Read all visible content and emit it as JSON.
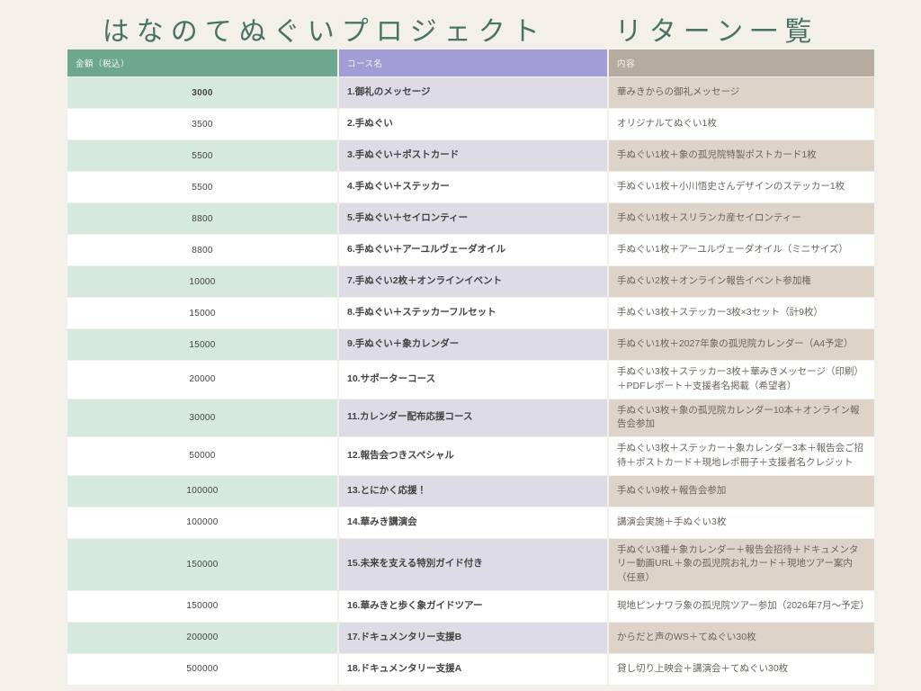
{
  "title": "はなのてぬぐいプロジェクト　　リターン一覧",
  "table": {
    "headers": {
      "amount": "金額（税込）",
      "course": "コース名",
      "description": "内容"
    },
    "rows": [
      {
        "amount": "3000",
        "course": "1.御礼のメッセージ",
        "description": "華みきからの御礼メッセージ"
      },
      {
        "amount": "3500",
        "course": "2.手ぬぐい",
        "description": "オリジナルてぬぐい1枚"
      },
      {
        "amount": "5500",
        "course": "3.手ぬぐい＋ポストカード",
        "description": "手ぬぐい1枚＋象の孤児院特製ポストカード1枚"
      },
      {
        "amount": "5500",
        "course": "4.手ぬぐい＋ステッカー",
        "description": "手ぬぐい1枚＋小川悟史さんデザインのステッカー1枚"
      },
      {
        "amount": "8800",
        "course": "5.手ぬぐい＋セイロンティー",
        "description": "手ぬぐい1枚＋スリランカ産セイロンティー"
      },
      {
        "amount": "8800",
        "course": "6.手ぬぐい＋アーユルヴェーダオイル",
        "description": "手ぬぐい1枚＋アーユルヴェーダオイル（ミニサイズ）"
      },
      {
        "amount": "10000",
        "course": "7.手ぬぐい2枚＋オンラインイベント",
        "description": "手ぬぐい2枚＋オンライン報告イベント参加権"
      },
      {
        "amount": "15000",
        "course": "8.手ぬぐい＋ステッカーフルセット",
        "description": "手ぬぐい3枚＋ステッカー3枚×3セット（計9枚）"
      },
      {
        "amount": "15000",
        "course": "9.手ぬぐい＋象カレンダー",
        "description": "手ぬぐい1枚＋2027年象の孤児院カレンダー（A4予定）"
      },
      {
        "amount": "20000",
        "course": "10.サポーターコース",
        "description": "手ぬぐい3枚＋ステッカー3枚＋華みきメッセージ（印刷）＋PDFレポート＋支援者名掲載（希望者）"
      },
      {
        "amount": "30000",
        "course": "11.カレンダー配布応援コース",
        "description": "手ぬぐい3枚＋象の孤児院カレンダー10本＋オンライン報告会参加"
      },
      {
        "amount": "50000",
        "course": "12.報告会つきスペシャル",
        "description": "手ぬぐい3枚＋ステッカー＋象カレンダー3本＋報告会ご招待＋ポストカード＋現地レポ冊子＋支援者名クレジット"
      },
      {
        "amount": "100000",
        "course": "13.とにかく応援！",
        "description": "手ぬぐい9枚＋報告会参加"
      },
      {
        "amount": "100000",
        "course": "14.華みき講演会",
        "description": "講演会実施＋手ぬぐい3枚"
      },
      {
        "amount": "150000",
        "course": "15.未来を支える特別ガイド付き",
        "description": "手ぬぐい3種＋象カレンダー＋報告会招待＋ドキュメンタリー動画URL＋象の孤児院お礼カード＋現地ツアー案内（任意）"
      },
      {
        "amount": "150000",
        "course": "16.華みきと歩く象ガイドツアー",
        "description": "現地ピンナワラ象の孤児院ツアー参加（2026年7月～予定）"
      },
      {
        "amount": "200000",
        "course": "17.ドキュメンタリー支援B",
        "description": "からだと声のWS＋てぬぐい30枚"
      },
      {
        "amount": "500000",
        "course": "18.ドキュメンタリー支援A",
        "description": "貸し切り上映会＋講演会＋てぬぐい30枚"
      }
    ]
  },
  "colors": {
    "page_background": "#F3F0EA",
    "title_text": "#4A7365",
    "header_amount_bg": "#6CA78E",
    "header_course_bg": "#A39DD6",
    "header_description_bg": "#B5ABA1",
    "header_text": "#F6F4F0",
    "tint_amount_bg": "#D5E9DF",
    "tint_course_bg": "#DCDBE6",
    "tint_description_bg": "#DED3C9",
    "row_bg": "#FFFFFF",
    "body_text": "#454240",
    "description_text": "#6B635C"
  }
}
